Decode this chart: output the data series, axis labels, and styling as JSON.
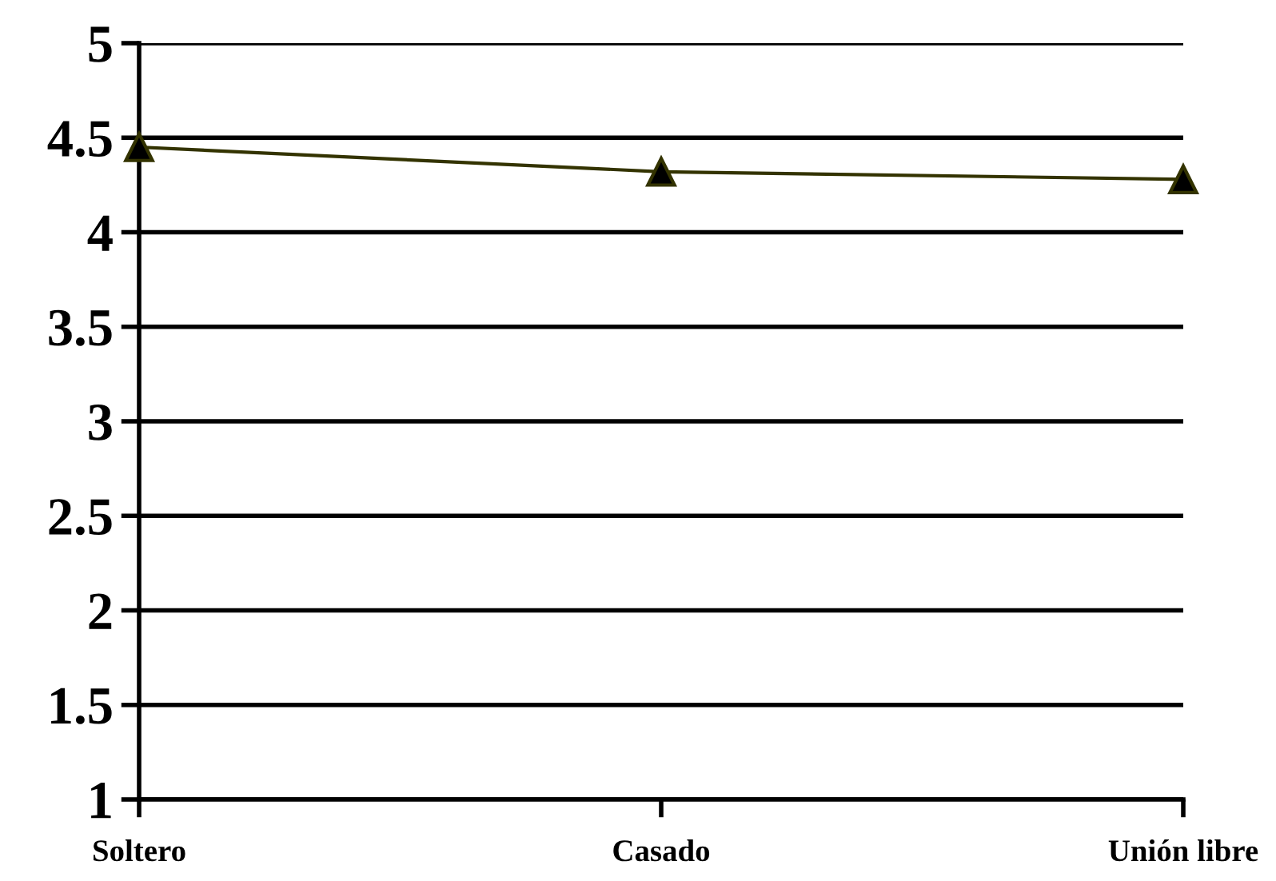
{
  "chart_data": {
    "type": "line",
    "categories": [
      "Soltero",
      "Casado",
      "Unión libre"
    ],
    "series": [
      {
        "color": "#333300",
        "values": [
          4.45,
          4.32,
          4.28
        ]
      }
    ],
    "ylim": [
      1,
      5
    ],
    "yticks": [
      1,
      1.5,
      2,
      2.5,
      3,
      3.5,
      4,
      4.5,
      5
    ],
    "grid": "y",
    "marker": "triangle",
    "line_style": "solid"
  }
}
